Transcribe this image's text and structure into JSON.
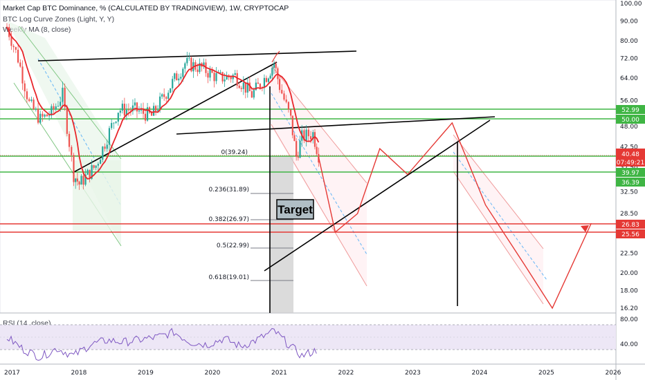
{
  "header": {
    "title": "Market Cap BTC Dominance, % (CALCULATED BY TRADINGVIEW), 1W, CRYPTOCAP",
    "indicator1": "BTC Log Curve Zones (Light, Y, Y)",
    "indicator2": "Weekly MA (8, close)"
  },
  "rsi": {
    "label": "RSI (14, close)",
    "ticks": [
      "80.00",
      "40.00"
    ]
  },
  "target_label": "Target",
  "price_ticks": [
    "100.00",
    "90.00",
    "80.00",
    "72.00",
    "64.00",
    "56.00",
    "48.00",
    "42.50",
    "37.50",
    "32.50",
    "28.50",
    "25.00",
    "22.50",
    "20.00",
    "18.00",
    "16.20"
  ],
  "time_ticks": [
    "2017",
    "2018",
    "2019",
    "2020",
    "2021",
    "2022",
    "2023",
    "2024",
    "2025",
    "2026"
  ],
  "price_tags": {
    "level1": "52.99",
    "level2": "50.00",
    "current_price": "40.48",
    "countdown": "07:49:21",
    "level3": "39.97",
    "level4": "36.39",
    "level5": "26.83",
    "level6": "25.56"
  },
  "fib_levels": [
    {
      "label": "0(39.24)",
      "value": 39.24
    },
    {
      "label": "0.236(31.89)",
      "value": 31.89
    },
    {
      "label": "0.382(26.97)",
      "value": 26.97
    },
    {
      "label": "0.5(22.99)",
      "value": 22.99
    },
    {
      "label": "0.618(19.01)",
      "value": 19.01
    }
  ],
  "colors": {
    "up": "#26a69a",
    "down": "#ef5350",
    "ma": "#e8252a",
    "green_level": "#3fb544",
    "red_level": "#e53935",
    "rsi_line": "#7e57c2",
    "rsi_band": "#ede7f6",
    "price_tag": "#e53935",
    "green_tag": "#3fb544"
  },
  "chart_data": {
    "type": "line",
    "y_scale": "log",
    "ylim": [
      16.2,
      100
    ],
    "xlim": [
      "2017-01",
      "2026-06"
    ],
    "price_series_approx": [
      [
        "2017-01",
        87
      ],
      [
        "2017-03",
        72
      ],
      [
        "2017-05",
        55
      ],
      [
        "2017-07",
        50
      ],
      [
        "2017-09",
        52
      ],
      [
        "2017-11",
        58
      ],
      [
        "2018-01",
        36
      ],
      [
        "2018-02",
        34
      ],
      [
        "2018-05",
        38
      ],
      [
        "2018-07",
        45
      ],
      [
        "2018-09",
        53
      ],
      [
        "2018-12",
        53
      ],
      [
        "2019-03",
        51
      ],
      [
        "2019-06",
        60
      ],
      [
        "2019-09",
        70
      ],
      [
        "2019-12",
        68
      ],
      [
        "2020-03",
        64
      ],
      [
        "2020-06",
        65
      ],
      [
        "2020-09",
        58
      ],
      [
        "2020-12",
        66
      ],
      [
        "2021-01",
        70
      ],
      [
        "2021-02",
        61
      ],
      [
        "2021-04",
        50
      ],
      [
        "2021-05",
        40
      ],
      [
        "2021-06",
        45
      ],
      [
        "2021-08",
        46
      ],
      [
        "2021-09",
        40.48
      ]
    ],
    "projection_path": [
      [
        "2021-09",
        40
      ],
      [
        "2021-12",
        25.5
      ],
      [
        "2022-04",
        28.5
      ],
      [
        "2022-08",
        42
      ],
      [
        "2023-01",
        36
      ],
      [
        "2023-09",
        49
      ],
      [
        "2024-03",
        30
      ],
      [
        "2024-10",
        21
      ],
      [
        "2025-03",
        16.2
      ],
      [
        "2025-10",
        26.9
      ]
    ],
    "horizontal_levels": [
      52.99,
      50.0,
      39.97,
      36.39,
      26.83,
      25.56
    ],
    "current_value": 40.48,
    "rsi": {
      "ylim": [
        20,
        90
      ],
      "levels": [
        70,
        30
      ],
      "values_approx": [
        [
          "2017-01",
          60
        ],
        [
          "2017-04",
          40
        ],
        [
          "2017-07",
          28
        ],
        [
          "2017-10",
          42
        ],
        [
          "2018-01",
          30
        ],
        [
          "2018-04",
          48
        ],
        [
          "2018-07",
          55
        ],
        [
          "2018-10",
          52
        ],
        [
          "2019-01",
          56
        ],
        [
          "2019-04",
          60
        ],
        [
          "2019-07",
          68
        ],
        [
          "2019-10",
          52
        ],
        [
          "2020-01",
          48
        ],
        [
          "2020-04",
          58
        ],
        [
          "2020-07",
          45
        ],
        [
          "2020-10",
          56
        ],
        [
          "2021-01",
          70
        ],
        [
          "2021-04",
          45
        ],
        [
          "2021-06",
          30
        ],
        [
          "2021-09",
          40
        ]
      ]
    }
  }
}
